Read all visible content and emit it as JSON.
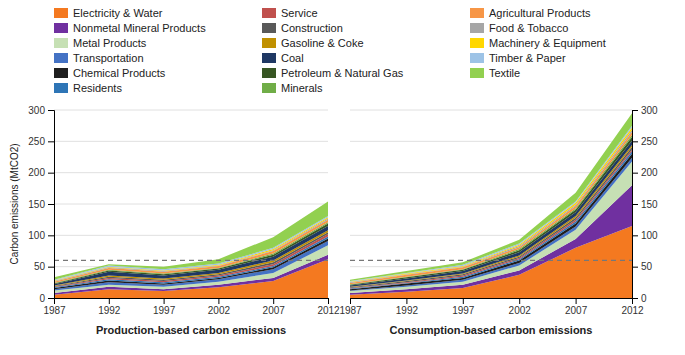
{
  "chart_data": [
    {
      "type": "area",
      "stacked": true,
      "grid": true,
      "legend": "top",
      "xlabel": "Production-based carbon emissions",
      "ylabel": "Carbon emissions (MtCO2)",
      "x": [
        1987,
        1992,
        1997,
        2002,
        2007,
        2012
      ],
      "xlim": [
        1987,
        2012
      ],
      "xticks": [
        1987,
        1992,
        1997,
        2002,
        2007,
        2012
      ],
      "ylim": [
        0,
        300
      ],
      "yticks": [
        0,
        50,
        100,
        150,
        200,
        250,
        300
      ],
      "reference_line": 60,
      "series": [
        {
          "name": "Electricity & Water",
          "color": "#F47920",
          "values": [
            5,
            14,
            11,
            17,
            27,
            62
          ]
        },
        {
          "name": "Nonmetal Mineral Products",
          "color": "#7030A0",
          "values": [
            3,
            4,
            3,
            4,
            5,
            7
          ]
        },
        {
          "name": "Metal Products",
          "color": "#C6E0B4",
          "values": [
            4,
            3,
            4,
            5,
            8,
            15
          ]
        },
        {
          "name": "Transportation",
          "color": "#4472C4",
          "values": [
            2,
            4,
            3,
            4,
            6,
            7
          ]
        },
        {
          "name": "Chemical Products",
          "color": "#1F1F1F",
          "values": [
            2,
            3,
            2,
            2,
            3,
            4
          ]
        },
        {
          "name": "Residents",
          "color": "#2E75B6",
          "values": [
            1,
            2,
            2,
            2,
            2,
            3
          ]
        },
        {
          "name": "Service",
          "color": "#C0504D",
          "values": [
            1,
            2,
            2,
            2,
            3,
            4
          ]
        },
        {
          "name": "Construction",
          "color": "#595959",
          "values": [
            1,
            2,
            2,
            2,
            3,
            3
          ]
        },
        {
          "name": "Gasoline & Coke",
          "color": "#C09000",
          "values": [
            1,
            2,
            2,
            2,
            3,
            3
          ]
        },
        {
          "name": "Coal",
          "color": "#1F3864",
          "values": [
            2,
            6,
            5,
            5,
            6,
            7
          ]
        },
        {
          "name": "Petroleum & Natural Gas",
          "color": "#375623",
          "values": [
            1,
            2,
            2,
            2,
            3,
            4
          ]
        },
        {
          "name": "Minerals",
          "color": "#70AD47",
          "values": [
            1,
            1,
            1,
            1,
            2,
            2
          ]
        },
        {
          "name": "Agricultural Products",
          "color": "#F79646",
          "values": [
            2,
            3,
            3,
            3,
            4,
            4
          ]
        },
        {
          "name": "Food & Tobacco",
          "color": "#A6A6A6",
          "values": [
            1,
            1,
            1,
            1,
            1,
            2
          ]
        },
        {
          "name": "Machinery & Equipment",
          "color": "#FFD700",
          "values": [
            1,
            1,
            1,
            1,
            2,
            2
          ]
        },
        {
          "name": "Timber & Paper",
          "color": "#9DC3E6",
          "values": [
            1,
            2,
            2,
            2,
            2,
            2
          ]
        },
        {
          "name": "Textile",
          "color": "#92D050",
          "values": [
            4,
            2,
            4,
            7,
            17,
            23
          ]
        }
      ]
    },
    {
      "type": "area",
      "stacked": true,
      "grid": true,
      "xlabel": "Consumption-based carbon emissions",
      "x": [
        1987,
        1992,
        1997,
        2002,
        2007,
        2012
      ],
      "xlim": [
        1987,
        2012
      ],
      "xticks": [
        1987,
        1992,
        1997,
        2002,
        2007,
        2012
      ],
      "ylim": [
        0,
        300
      ],
      "yticks": [
        0,
        50,
        100,
        150,
        200,
        250,
        300
      ],
      "reference_line": 60,
      "series": [
        {
          "name": "Electricity & Water",
          "color": "#F47920",
          "values": [
            5,
            10,
            16,
            37,
            80,
            115
          ]
        },
        {
          "name": "Nonmetal Mineral Products",
          "color": "#7030A0",
          "values": [
            3,
            4,
            5,
            7,
            14,
            65
          ]
        },
        {
          "name": "Metal Products",
          "color": "#C6E0B4",
          "values": [
            3,
            4,
            5,
            8,
            15,
            38
          ]
        },
        {
          "name": "Transportation",
          "color": "#4472C4",
          "values": [
            1,
            2,
            3,
            4,
            5,
            6
          ]
        },
        {
          "name": "Chemical Products",
          "color": "#1F1F1F",
          "values": [
            2,
            3,
            3,
            4,
            5,
            6
          ]
        },
        {
          "name": "Residents",
          "color": "#2E75B6",
          "values": [
            1,
            1,
            2,
            2,
            3,
            4
          ]
        },
        {
          "name": "Service",
          "color": "#C0504D",
          "values": [
            1,
            1,
            2,
            2,
            3,
            3
          ]
        },
        {
          "name": "Construction",
          "color": "#595959",
          "values": [
            1,
            2,
            2,
            2,
            3,
            4
          ]
        },
        {
          "name": "Gasoline & Coke",
          "color": "#C09000",
          "values": [
            1,
            1,
            1,
            2,
            3,
            3
          ]
        },
        {
          "name": "Coal",
          "color": "#1F3864",
          "values": [
            2,
            3,
            4,
            5,
            6,
            7
          ]
        },
        {
          "name": "Petroleum & Natural Gas",
          "color": "#375623",
          "values": [
            1,
            2,
            2,
            3,
            4,
            6
          ]
        },
        {
          "name": "Minerals",
          "color": "#70AD47",
          "values": [
            1,
            1,
            1,
            2,
            2,
            3
          ]
        },
        {
          "name": "Agricultural Products",
          "color": "#F79646",
          "values": [
            2,
            3,
            3,
            3,
            4,
            5
          ]
        },
        {
          "name": "Food & Tobacco",
          "color": "#A6A6A6",
          "values": [
            1,
            1,
            1,
            2,
            2,
            3
          ]
        },
        {
          "name": "Machinery & Equipment",
          "color": "#FFD700",
          "values": [
            1,
            1,
            1,
            2,
            3,
            4
          ]
        },
        {
          "name": "Timber & Paper",
          "color": "#9DC3E6",
          "values": [
            1,
            1,
            2,
            2,
            2,
            3
          ]
        },
        {
          "name": "Textile",
          "color": "#92D050",
          "values": [
            2,
            3,
            4,
            6,
            14,
            20
          ]
        }
      ]
    }
  ]
}
